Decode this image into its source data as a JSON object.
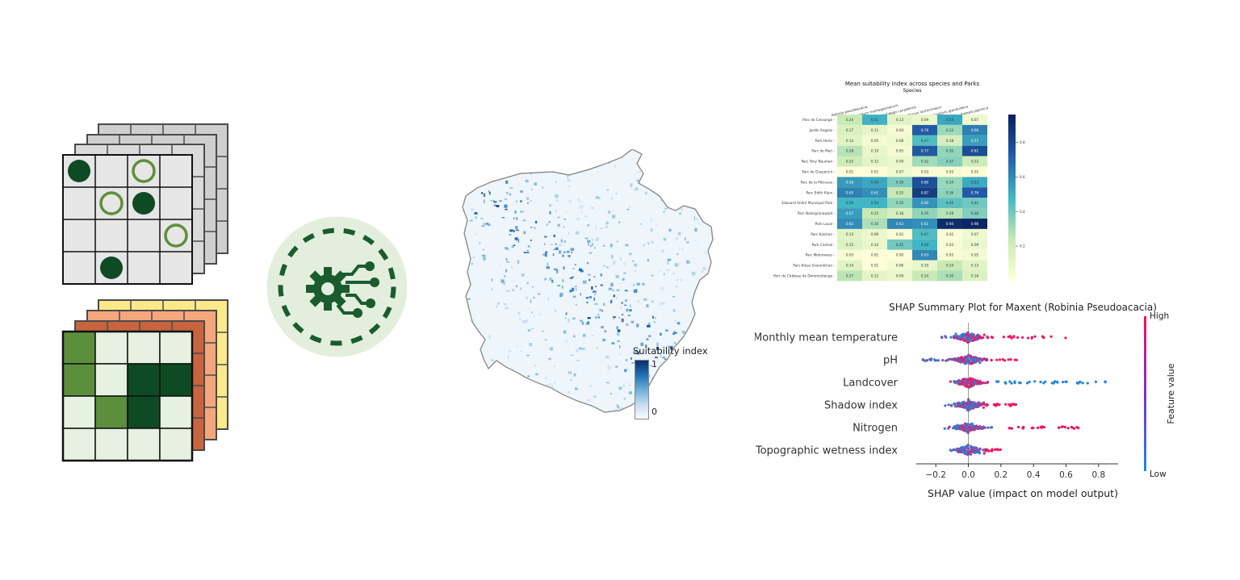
{
  "grids": {
    "presence_circles": [
      {
        "row": 0,
        "col": 0,
        "type": "filled"
      },
      {
        "row": 0,
        "col": 2,
        "type": "hollow"
      },
      {
        "row": 1,
        "col": 1,
        "type": "hollow"
      },
      {
        "row": 1,
        "col": 2,
        "type": "filled"
      },
      {
        "row": 2,
        "col": 3,
        "type": "hollow"
      },
      {
        "row": 3,
        "col": 1,
        "type": "filled"
      }
    ],
    "env_cells": [
      [
        1,
        0,
        0,
        0
      ],
      [
        1,
        0,
        2,
        2
      ],
      [
        0,
        1,
        2,
        0
      ],
      [
        0,
        0,
        0,
        0
      ]
    ],
    "colors": {
      "grey_front": "#e6e6e6",
      "grey_back": "#cfcfcf",
      "dark_green": "#0e4a24",
      "mid_green": "#5b8f3c",
      "light_green": "#e6f1e1",
      "hollow_ring": "#5b8f3c",
      "yellow": "#fbe98a",
      "salmon": "#f4a67d",
      "brick": "#c8653e"
    }
  },
  "model_icon": {
    "icon": "gear-circuit-icon",
    "bg": "#e3eedc",
    "fg": "#1a5c2e"
  },
  "map": {
    "legend_title": "Suitability index",
    "legend_max": "1",
    "legend_min": "0"
  },
  "heatmap": {
    "title": "Mean suitability index across species and Parks",
    "xlabel": "Species",
    "species": [
      "Robinia pseudoacacia",
      "Heracleum mantegazzianum",
      "Solidago canadensis",
      "Prunus laurocerasus",
      "Impatiens glandulifera",
      "Fallopia japonica"
    ],
    "parks": [
      "Parc de Cessange",
      "Jardin Anglais",
      "Park Hertz",
      "Parc de Merl",
      "Parc Tony Neuman",
      "Parc de Gasperich",
      "Parc de la Pétrusse",
      "Parc Edith Klein",
      "Edouard André Municipal Park",
      "Parc Neiergrünewald",
      "Park Laval",
      "Parc Kalchen",
      "Park Central",
      "Parc Molenwees",
      "Parc-Klose-Groendchen",
      "Parc du Château de Dommeldange"
    ],
    "values": [
      [
        "0.24",
        "0.51",
        "0.13",
        "0.09",
        "0.54",
        "0.07"
      ],
      [
        "0.17",
        "0.11",
        "0.04",
        "0.76",
        "0.33",
        "0.66"
      ],
      [
        "0.14",
        "0.05",
        "0.08",
        "0.47",
        "0.18",
        "0.57"
      ],
      [
        "0.28",
        "0.10",
        "0.05",
        "0.77",
        "0.35",
        "0.81"
      ],
      [
        "0.22",
        "0.12",
        "0.09",
        "0.32",
        "0.37",
        "0.22"
      ],
      [
        "0.01",
        "0.01",
        "0.07",
        "0.03",
        "0.03",
        "0.01"
      ],
      [
        "0.58",
        "0.54",
        "0.39",
        "0.80",
        "0.34",
        "0.53"
      ],
      [
        "0.65",
        "0.61",
        "0.25",
        "0.87",
        "0.36",
        "0.76"
      ],
      [
        "0.50",
        "0.50",
        "0.35",
        "0.60",
        "0.45",
        "0.41"
      ],
      [
        "0.57",
        "0.25",
        "0.18",
        "0.35",
        "0.28",
        "0.38"
      ],
      [
        "0.62",
        "0.30",
        "0.63",
        "0.61",
        "0.94",
        "0.96"
      ],
      [
        "0.13",
        "0.09",
        "0.02",
        "0.47",
        "0.02",
        "0.07"
      ],
      [
        "0.15",
        "0.10",
        "0.41",
        "0.50",
        "0.03",
        "0.09"
      ],
      [
        "0.03",
        "0.01",
        "0.00",
        "0.63",
        "0.03",
        "0.05"
      ],
      [
        "0.14",
        "0.01",
        "0.06",
        "0.10",
        "0.24",
        "0.13"
      ],
      [
        "0.27",
        "0.12",
        "0.09",
        "0.24",
        "0.30",
        "0.16"
      ]
    ],
    "colorbar_ticks": [
      "0.8",
      "0.6",
      "0.4",
      "0.2"
    ]
  },
  "chart_data": {
    "type": "scatter",
    "title": "SHAP Summary Plot for Maxent (Robinia Pseudoacacia)",
    "xlabel": "SHAP value (impact on model output)",
    "x_ticks": [
      "−0.2",
      "0.0",
      "0.2",
      "0.4",
      "0.6",
      "0.8"
    ],
    "xlim": [
      -0.32,
      0.92
    ],
    "features": [
      {
        "name": "Monthly mean temperature",
        "min": -0.2,
        "max": 0.6
      },
      {
        "name": "pH",
        "min": -0.28,
        "max": 0.3
      },
      {
        "name": "Landcover",
        "min": -0.06,
        "max": 0.87
      },
      {
        "name": "Shadow index",
        "min": -0.18,
        "max": 0.3
      },
      {
        "name": "Nitrogen",
        "min": -0.15,
        "max": 0.68
      },
      {
        "name": "Topographic wetness index",
        "min": -0.05,
        "max": 0.2
      }
    ],
    "colorbar_label": "Feature value",
    "colorbar_high": "High",
    "colorbar_low": "Low",
    "colors": {
      "high": "#ff0d57",
      "low": "#1e88e5"
    }
  }
}
